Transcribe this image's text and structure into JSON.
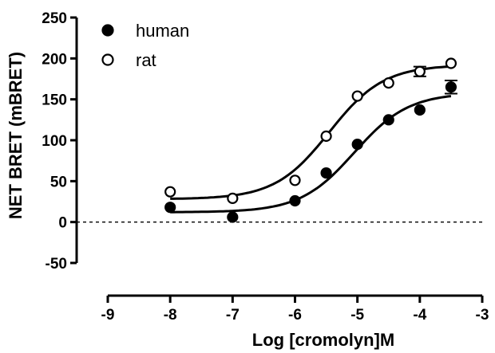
{
  "chart_data": {
    "type": "scatter",
    "xlabel": "Log [cromolyn]M",
    "ylabel": "NET BRET (mBRET)",
    "xlim": [
      -9,
      -3
    ],
    "ylim": [
      -50,
      250
    ],
    "x_ticks": [
      "-9",
      "-8",
      "-7",
      "-6",
      "-5",
      "-4",
      "-3"
    ],
    "y_ticks": [
      "250",
      "200",
      "150",
      "100",
      "50",
      "0",
      "-50"
    ],
    "zero_line": "dashed",
    "legend_position": "top-left",
    "series": [
      {
        "name": "human",
        "marker": "filled-circle",
        "x": [
          -8,
          -7,
          -6,
          -5.5,
          -5,
          -4.5,
          -4,
          -3.5
        ],
        "y": [
          18,
          6,
          26,
          60,
          95,
          125,
          137,
          165
        ],
        "error": [
          0,
          0,
          0,
          0,
          0,
          0,
          0,
          8
        ],
        "fit": {
          "bottom": 12,
          "top": 158,
          "logEC50": -5.05,
          "hill": 1
        }
      },
      {
        "name": "rat",
        "marker": "open-circle",
        "x": [
          -8,
          -7,
          -6,
          -5.5,
          -5,
          -4.5,
          -4,
          -3.5
        ],
        "y": [
          37,
          29,
          51,
          105,
          154,
          170,
          184,
          194
        ],
        "error": [
          0,
          0,
          0,
          0,
          0,
          0,
          6,
          0
        ],
        "fit": {
          "bottom": 28,
          "top": 192,
          "logEC50": -5.45,
          "hill": 1
        }
      }
    ]
  }
}
